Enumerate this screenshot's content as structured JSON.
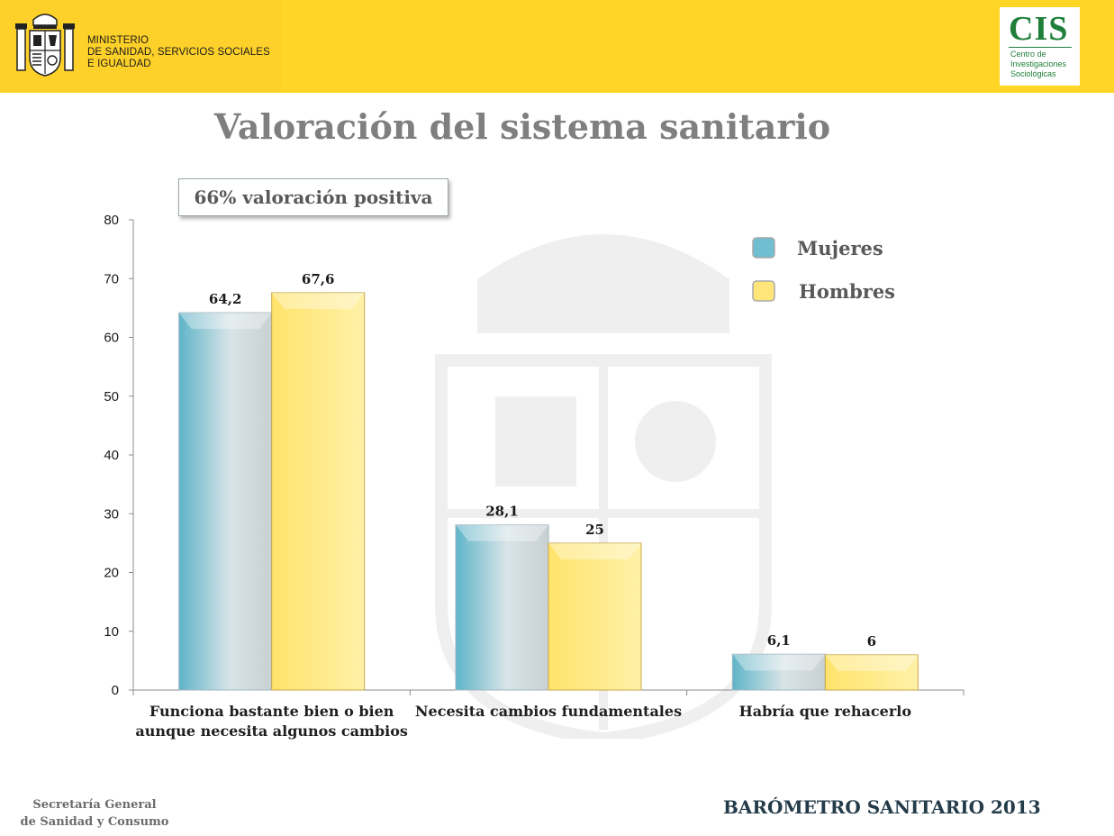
{
  "header": {
    "ministry_lines": [
      "MINISTERIO",
      "DE SANIDAD, SERVICIOS SOCIALES",
      "E IGUALDAD"
    ],
    "cis_logo": "CIS",
    "cis_lines": [
      "Centro de",
      "Investigaciones",
      "Sociológicas"
    ]
  },
  "title": "Valoración del sistema sanitario",
  "callout": "66%  valoración positiva",
  "footer": {
    "left_lines": [
      "Secretaría General",
      "de Sanidad y Consumo"
    ],
    "right": "BARÓMETRO SANITARIO 2013"
  },
  "colors": {
    "banner": "#ffd526",
    "title": "#7f7f7f",
    "mujeres": "#6fbfd0",
    "hombres": "#ffe57a",
    "cis_green": "#1f7f3a"
  },
  "chart_data": {
    "type": "bar",
    "categories": [
      [
        "Funciona  bastante bien o bien",
        "aunque necesita algunos cambios"
      ],
      [
        "Necesita cambios fundamentales"
      ],
      [
        "Habría que rehacerlo"
      ]
    ],
    "series": [
      {
        "name": "Mujeres",
        "values": [
          64.2,
          28.1,
          6.1
        ],
        "labels": [
          "64,2",
          "28,1",
          "6,1"
        ]
      },
      {
        "name": "Hombres",
        "values": [
          67.6,
          25,
          6
        ],
        "labels": [
          "67,6",
          "25",
          "6"
        ]
      }
    ],
    "ylim": [
      0,
      80
    ],
    "yticks": [
      0,
      10,
      20,
      30,
      40,
      50,
      60,
      70,
      80
    ],
    "grid": false,
    "legend": "top-right"
  }
}
